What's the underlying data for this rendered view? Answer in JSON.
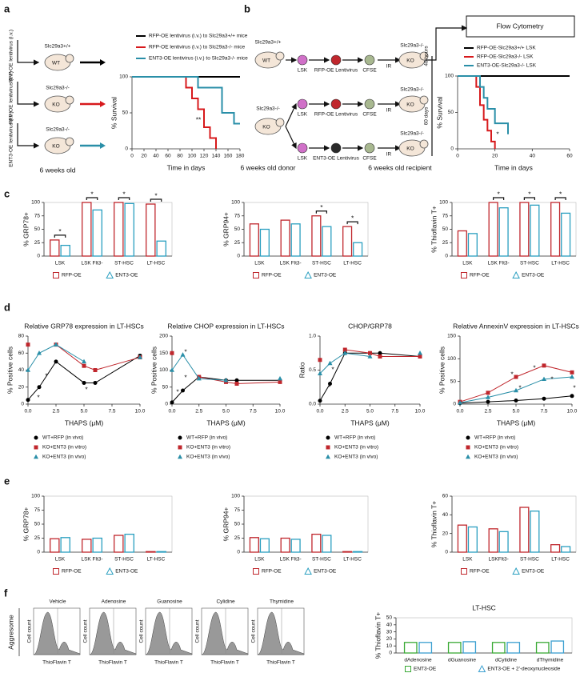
{
  "panel_labels": [
    "a",
    "b",
    "c",
    "d",
    "e",
    "f"
  ],
  "diagram_a": {
    "rows": [
      {
        "vector": "RFP-OE lentivirus (i.v.)",
        "genotype": "Slc29a3+/+",
        "mouse": "WT"
      },
      {
        "vector": "RFP-OE lentivirus (i.v.)",
        "genotype": "Slc29a3-/-",
        "mouse": "KO"
      },
      {
        "vector": "ENT3-OE lentivirus (i.v.)",
        "genotype": "Slc29a3-/-",
        "mouse": "KO"
      }
    ],
    "age": "6 weeks old"
  },
  "diagram_b": {
    "donors": [
      {
        "genotype": "Slc29a3+/+",
        "mouse": "WT"
      },
      {
        "genotype": "Slc29a3-/-",
        "mouse": "KO"
      }
    ],
    "steps": [
      [
        "LSK",
        "RFP-OE Lentivirus",
        "CFSE"
      ],
      [
        "LSK",
        "RFP-OE Lentivirus",
        "CFSE"
      ],
      [
        "LSK",
        "ENT3-OE Lentivirus",
        "CFSE"
      ]
    ],
    "irradiation": "IR",
    "recipient": {
      "genotype": "Slc29a3-/-",
      "mouse": "KO"
    },
    "donor_age": "6 weeks old donor",
    "recipient_age": "6 weeks old recipient",
    "assay": "Flow Cytometry",
    "timepoints": [
      "48 hours",
      "60 days"
    ]
  },
  "diagram_f": {
    "row_label": "Aggresome",
    "panels": [
      "Vehicle",
      "Adenosine",
      "Guanosine",
      "Cylidine",
      "Thymidine"
    ],
    "y_label": "Cell count",
    "x_label": "ThioFlavin T"
  },
  "chart_data": [
    {
      "type": "line",
      "step": true,
      "x": [
        0,
        80,
        90,
        100,
        110,
        120,
        130,
        140,
        150,
        160,
        170,
        180
      ],
      "xlim": [
        0,
        180
      ],
      "xticks": [
        0,
        20,
        40,
        60,
        80,
        100,
        120,
        140,
        160,
        180
      ],
      "ylim": [
        0,
        100
      ],
      "yticks": [
        0,
        50,
        100
      ],
      "x_label": "Time in days",
      "y_label": "% Survival",
      "legend": "top",
      "annotations": [
        "**"
      ],
      "series": [
        {
          "name": "RFP-OE lentivirus (i.v.) to Slc29a3+/+ mice",
          "color": "#000000",
          "values": [
            100,
            100,
            100,
            100,
            100,
            100,
            100,
            100,
            100,
            100,
            100,
            100
          ]
        },
        {
          "name": "RFP-OE lentivirus (i.v.) to Slc29a3-/- mice",
          "color": "#d7191c",
          "values": [
            100,
            100,
            85,
            70,
            55,
            30,
            15,
            0,
            null,
            null,
            null,
            null
          ]
        },
        {
          "name": "ENT3-OE lentivirus (i.v.) to Slc29a3-/- mice",
          "color": "#2a8fa8",
          "values": [
            100,
            100,
            100,
            100,
            85,
            85,
            85,
            85,
            50,
            50,
            35,
            35
          ]
        }
      ]
    },
    {
      "type": "line",
      "step": true,
      "x": [
        0,
        10,
        12,
        14,
        16,
        18,
        20,
        22,
        25,
        27,
        60
      ],
      "xlim": [
        0,
        60
      ],
      "xticks": [
        0,
        20,
        40,
        60
      ],
      "ylim": [
        0,
        100
      ],
      "yticks": [
        0,
        50,
        100
      ],
      "x_label": "Time in days",
      "y_label": "% Survival",
      "legend": "top",
      "annotations": [
        "*"
      ],
      "series": [
        {
          "name": "RFP-OE-Slc29a3+/+ LSK",
          "color": "#000000",
          "values": [
            100,
            100,
            100,
            100,
            100,
            100,
            100,
            100,
            100,
            100,
            100
          ]
        },
        {
          "name": "RFP-OE-Slc29a3-/- LSK",
          "color": "#d7191c",
          "values": [
            100,
            85,
            60,
            40,
            25,
            10,
            0,
            null,
            null,
            null,
            null
          ]
        },
        {
          "name": "ENT3-OE-Slc29a3-/- LSK",
          "color": "#2a8fa8",
          "values": [
            100,
            100,
            85,
            70,
            55,
            55,
            35,
            35,
            35,
            20,
            null
          ]
        }
      ]
    },
    {
      "type": "bar",
      "categories": [
        "LSK",
        "LSK Flt3-",
        "ST-HSC",
        "LT-HSC"
      ],
      "ylim": [
        0,
        100
      ],
      "yticks": [
        0,
        25,
        50,
        75,
        100
      ],
      "y_label": "% GRP78+",
      "legend": "bottom",
      "significance": [
        "*",
        "*",
        "*",
        "*"
      ],
      "series": [
        {
          "name": "RFP-OE",
          "color": "#c0272d",
          "values": [
            30,
            100,
            100,
            97
          ]
        },
        {
          "name": "ENT3-OE",
          "color": "#2a9fc0",
          "values": [
            20,
            86,
            98,
            28
          ]
        }
      ]
    },
    {
      "type": "bar",
      "categories": [
        "LSK",
        "LSK Flt3-",
        "ST-HSC",
        "LT-HSC"
      ],
      "ylim": [
        0,
        100
      ],
      "yticks": [
        0,
        25,
        50,
        75,
        100
      ],
      "y_label": "% GRP94+",
      "legend": "bottom",
      "significance": [
        null,
        null,
        "*",
        "*"
      ],
      "series": [
        {
          "name": "RFP-OE",
          "color": "#c0272d",
          "values": [
            60,
            67,
            75,
            55
          ]
        },
        {
          "name": "ENT3-OE",
          "color": "#2a9fc0",
          "values": [
            50,
            60,
            55,
            25
          ]
        }
      ]
    },
    {
      "type": "bar",
      "categories": [
        "LSK",
        "LSK Flt3-",
        "ST-HSC",
        "LT-HSC"
      ],
      "ylim": [
        0,
        100
      ],
      "yticks": [
        0,
        25,
        50,
        75,
        100
      ],
      "y_label": "% Thioflavin T+",
      "legend": "bottom",
      "significance": [
        null,
        "*",
        "*",
        "*"
      ],
      "series": [
        {
          "name": "RFP-OE",
          "color": "#c0272d",
          "values": [
            47,
            100,
            100,
            100
          ]
        },
        {
          "name": "ENT3-OE",
          "color": "#2a9fc0",
          "values": [
            42,
            90,
            95,
            80
          ]
        }
      ]
    },
    {
      "type": "line",
      "markers": true,
      "title": "Relative GRP78 expression in LT-HSCs",
      "x": [
        0,
        1,
        2.5,
        5,
        6,
        10
      ],
      "xlim": [
        0,
        10
      ],
      "xticks": [
        {
          "value": 0,
          "label": "0.0"
        },
        2.5,
        {
          "value": 5,
          "label": "5.0"
        },
        7.5,
        {
          "value": 10,
          "label": "10.0"
        }
      ],
      "ylim": [
        0,
        80
      ],
      "yticks": [
        0,
        20,
        40,
        60,
        80
      ],
      "x_label": "THAPS (μM)",
      "y_label": "% Positive cells",
      "legend": "bottom",
      "annotations": [
        "*",
        "*",
        "*"
      ],
      "series": [
        {
          "name": "WT+RFP (in vivo)",
          "color": "#000000",
          "values": [
            5,
            20,
            50,
            25,
            25,
            57
          ]
        },
        {
          "name": "KO+ENT3 (in vitro)",
          "color": "#c0272d",
          "values": [
            70,
            null,
            70,
            45,
            40,
            55
          ]
        },
        {
          "name": "KO+ENT3 (in vivo)",
          "color": "#2a8fa8",
          "values": [
            40,
            60,
            70,
            50,
            null,
            55
          ]
        }
      ]
    },
    {
      "type": "line",
      "markers": true,
      "title": "Relative CHOP expression in LT-HSCs",
      "x": [
        0,
        1,
        2.5,
        5,
        6,
        10
      ],
      "xlim": [
        0,
        10
      ],
      "xticks": [
        {
          "value": 0,
          "label": "0.0"
        },
        2.5,
        {
          "value": 5,
          "label": "5.0"
        },
        7.5,
        {
          "value": 10,
          "label": "10.0"
        }
      ],
      "ylim": [
        0,
        200
      ],
      "yticks": [
        0,
        50,
        100,
        150,
        200
      ],
      "x_label": "THAPS (μM)",
      "y_label": "% Positive cells",
      "legend": "bottom",
      "annotations": [
        "*",
        "*",
        "*"
      ],
      "series": [
        {
          "name": "WT+RFP (in vivo)",
          "color": "#000000",
          "values": [
            5,
            40,
            80,
            70,
            70,
            70
          ]
        },
        {
          "name": "KO+ENT3 (in vitro)",
          "color": "#c0272d",
          "values": [
            150,
            null,
            80,
            65,
            60,
            65
          ]
        },
        {
          "name": "KO+ENT3 (in vivo)",
          "color": "#2a8fa8",
          "values": [
            100,
            145,
            75,
            70,
            null,
            75
          ]
        }
      ]
    },
    {
      "type": "line",
      "markers": true,
      "title": "CHOP/GRP78",
      "x": [
        0,
        1,
        2.5,
        5,
        6,
        10
      ],
      "xlim": [
        0,
        10
      ],
      "xticks": [
        {
          "value": 0,
          "label": "0.0"
        },
        2.5,
        {
          "value": 5,
          "label": "5.0"
        },
        7.5,
        {
          "value": 10,
          "label": "10.0"
        }
      ],
      "ylim": [
        0,
        1
      ],
      "yticks": [
        {
          "value": 0,
          "label": "0.0"
        },
        0.5,
        {
          "value": 1,
          "label": "1.0"
        }
      ],
      "x_label": "THAPS (μM)",
      "y_label": "Ratio",
      "legend": "bottom",
      "annotations": [
        "*",
        "*"
      ],
      "series": [
        {
          "name": "WT+RFP (in vivo)",
          "color": "#000000",
          "values": [
            0.05,
            0.3,
            0.75,
            0.75,
            0.75,
            0.7
          ]
        },
        {
          "name": "KO+ENT3 (in vitro)",
          "color": "#c0272d",
          "values": [
            0.65,
            null,
            0.8,
            0.75,
            0.7,
            0.7
          ]
        },
        {
          "name": "KO+ENT3 (in vivo)",
          "color": "#2a8fa8",
          "values": [
            0.45,
            0.6,
            0.75,
            0.7,
            null,
            0.75
          ]
        }
      ]
    },
    {
      "type": "line",
      "markers": true,
      "title": "Relative AnnexinV expression in LT-HSCs",
      "x": [
        0,
        2.5,
        5,
        7.5,
        10
      ],
      "xlim": [
        0,
        10
      ],
      "xticks": [
        {
          "value": 0,
          "label": "0.0"
        },
        2.5,
        {
          "value": 5,
          "label": "5.0"
        },
        7.5,
        {
          "value": 10,
          "label": "10.0"
        }
      ],
      "ylim": [
        0,
        150
      ],
      "yticks": [
        0,
        50,
        100,
        150
      ],
      "x_label": "THAPS (μM)",
      "y_label": "% Positive cells",
      "legend": "bottom",
      "annotations": [
        "*",
        "*",
        "*",
        "*",
        "*"
      ],
      "series": [
        {
          "name": "WT+RFP (in vivo)",
          "color": "#000000",
          "values": [
            2,
            5,
            8,
            12,
            18
          ]
        },
        {
          "name": "KO+ENT3 (in vitro)",
          "color": "#c0272d",
          "values": [
            5,
            25,
            60,
            85,
            70
          ]
        },
        {
          "name": "KO+ENT3 (in vivo)",
          "color": "#2a8fa8",
          "values": [
            3,
            15,
            30,
            55,
            60
          ]
        }
      ]
    },
    {
      "type": "bar",
      "categories": [
        "LSK",
        "LSK Flt3-",
        "ST-HSC",
        "LT-HSC"
      ],
      "ylim": [
        0,
        100
      ],
      "yticks": [
        0,
        25,
        50,
        75,
        100
      ],
      "y_label": "% GRP78+",
      "legend": "bottom",
      "series": [
        {
          "name": "RFP-OE",
          "color": "#c0272d",
          "values": [
            24,
            23,
            30,
            1
          ]
        },
        {
          "name": "ENT3-OE",
          "color": "#2a9fc0",
          "values": [
            26,
            25,
            32,
            1
          ]
        }
      ]
    },
    {
      "type": "bar",
      "categories": [
        "LSK",
        "LSK Flt3-",
        "ST-HSC",
        "LT-HSC"
      ],
      "ylim": [
        0,
        100
      ],
      "yticks": [
        0,
        25,
        50,
        75,
        100
      ],
      "y_label": "% GRP94+",
      "legend": "bottom",
      "series": [
        {
          "name": "RFP-OE",
          "color": "#c0272d",
          "values": [
            26,
            25,
            32,
            1
          ]
        },
        {
          "name": "ENT3-OE",
          "color": "#2a9fc0",
          "values": [
            24,
            23,
            30,
            1
          ]
        }
      ]
    },
    {
      "type": "bar",
      "categories": [
        "LSK",
        "LSKFlt3-",
        "ST-HSC",
        "LT-HSC"
      ],
      "ylim": [
        0,
        60
      ],
      "yticks": [
        0,
        20,
        40,
        60
      ],
      "y_label": "% Thioflavin T+",
      "legend": "bottom",
      "series": [
        {
          "name": "RFP-OE",
          "color": "#c0272d",
          "values": [
            29,
            25,
            48,
            8
          ]
        },
        {
          "name": "ENT3-OE",
          "color": "#2a9fc0",
          "values": [
            27,
            22,
            44,
            6
          ]
        }
      ]
    },
    {
      "type": "bar",
      "title": "LT-HSC",
      "categories": [
        "dAdenosine",
        "dGuanosine",
        "dCytidine",
        "dThymidine"
      ],
      "ylim": [
        0,
        50
      ],
      "yticks": [
        0,
        10,
        20,
        30,
        40,
        50
      ],
      "y_label": "% Thioflavin T+",
      "legend": "bottom",
      "series": [
        {
          "name": "ENT3-OE",
          "color": "#3aaa35",
          "values": [
            15,
            15,
            15,
            15
          ]
        },
        {
          "name": "ENT3-OE + 2'-deoxynucleoside",
          "color": "#3a9fd0",
          "values": [
            15,
            16,
            15,
            17
          ]
        }
      ]
    }
  ]
}
